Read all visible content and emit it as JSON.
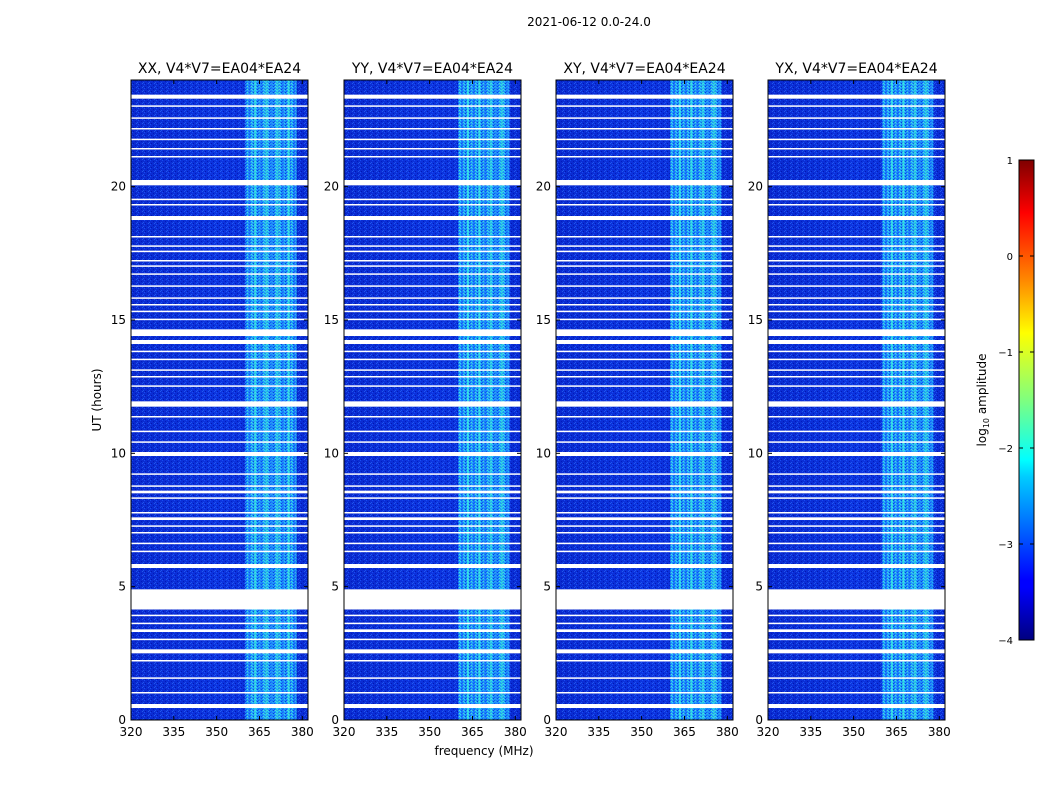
{
  "chart_data": {
    "type": "heatmap",
    "suptitle": "2021-06-12 0.0-24.0",
    "xlabel": "frequency (MHz)",
    "ylabel": "UT (hours)",
    "xlim": [
      320,
      382
    ],
    "ylim": [
      0,
      24
    ],
    "xticks": [
      320,
      335,
      350,
      365,
      380
    ],
    "yticks": [
      0,
      5,
      10,
      15,
      20
    ],
    "rfi_band_mhz": [
      360,
      378
    ],
    "panels": [
      {
        "title": "XX, V4*V7=EA04*EA24"
      },
      {
        "title": "YY, V4*V7=EA04*EA24"
      },
      {
        "title": "XY, V4*V7=EA04*EA24"
      },
      {
        "title": "YX, V4*V7=EA04*EA24"
      }
    ],
    "flagged_hours": [
      [
        0.45,
        0.6
      ],
      [
        1.0,
        1.05
      ],
      [
        1.55,
        1.6
      ],
      [
        2.2,
        2.25
      ],
      [
        2.5,
        2.65
      ],
      [
        3.0,
        3.05
      ],
      [
        3.3,
        3.4
      ],
      [
        3.6,
        3.65
      ],
      [
        3.9,
        3.95
      ],
      [
        4.15,
        4.2
      ],
      [
        4.2,
        4.9
      ],
      [
        5.7,
        5.85
      ],
      [
        6.3,
        6.35
      ],
      [
        6.6,
        6.65
      ],
      [
        7.0,
        7.05
      ],
      [
        7.25,
        7.3
      ],
      [
        7.5,
        7.6
      ],
      [
        7.75,
        7.8
      ],
      [
        8.3,
        8.35
      ],
      [
        8.5,
        8.6
      ],
      [
        8.75,
        8.8
      ],
      [
        9.2,
        9.25
      ],
      [
        9.9,
        10.05
      ],
      [
        10.4,
        10.45
      ],
      [
        10.8,
        10.85
      ],
      [
        11.35,
        11.4
      ],
      [
        11.75,
        11.95
      ],
      [
        12.5,
        12.55
      ],
      [
        12.85,
        12.9
      ],
      [
        13.1,
        13.15
      ],
      [
        13.5,
        13.55
      ],
      [
        13.8,
        13.85
      ],
      [
        14.1,
        14.25
      ],
      [
        14.4,
        14.65
      ],
      [
        15.0,
        15.05
      ],
      [
        15.3,
        15.35
      ],
      [
        15.55,
        15.6
      ],
      [
        15.8,
        15.85
      ],
      [
        16.25,
        16.3
      ],
      [
        16.7,
        16.75
      ],
      [
        17.0,
        17.05
      ],
      [
        17.2,
        17.25
      ],
      [
        17.55,
        17.6
      ],
      [
        17.75,
        17.8
      ],
      [
        18.1,
        18.15
      ],
      [
        18.75,
        18.9
      ],
      [
        19.3,
        19.35
      ],
      [
        19.5,
        19.55
      ],
      [
        20.05,
        20.25
      ],
      [
        21.1,
        21.15
      ],
      [
        21.4,
        21.45
      ],
      [
        21.75,
        21.8
      ],
      [
        22.15,
        22.2
      ],
      [
        22.55,
        22.6
      ],
      [
        23.0,
        23.05
      ],
      [
        23.3,
        23.45
      ]
    ],
    "colorbar": {
      "label": "log10 amplitude",
      "label_base": "log",
      "label_sub": "10",
      "label_rest": " amplitude",
      "range": [
        -4,
        1
      ],
      "ticks": [
        -4,
        -3,
        -2,
        -1,
        0,
        1
      ],
      "colormap": "jet"
    }
  }
}
